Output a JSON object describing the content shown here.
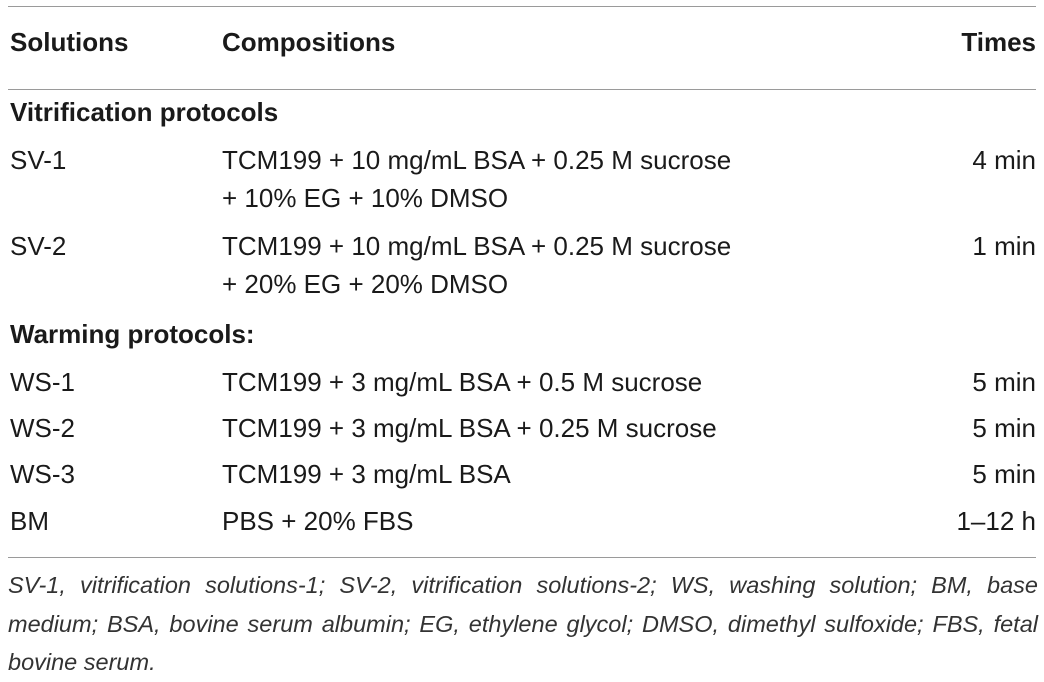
{
  "header": {
    "solutions": "Solutions",
    "compositions": "Compositions",
    "times": "Times"
  },
  "sections": {
    "vitrification": "Vitrification protocols",
    "warming": "Warming protocols:"
  },
  "rows": [
    {
      "solution": "SV-1",
      "composition_line1": "TCM199 + 10 mg/mL BSA + 0.25 M sucrose",
      "composition_line2": "+ 10% EG + 10% DMSO",
      "time": "4 min"
    },
    {
      "solution": "SV-2",
      "composition_line1": "TCM199 + 10 mg/mL BSA + 0.25 M sucrose",
      "composition_line2": "+ 20% EG + 20% DMSO",
      "time": "1 min"
    },
    {
      "solution": "WS-1",
      "composition_line1": "TCM199 + 3 mg/mL BSA + 0.5 M sucrose",
      "time": "5 min"
    },
    {
      "solution": "WS-2",
      "composition_line1": "TCM199 + 3 mg/mL BSA + 0.25 M sucrose",
      "time": "5 min"
    },
    {
      "solution": "WS-3",
      "composition_line1": "TCM199 + 3 mg/mL BSA",
      "time": "5 min"
    },
    {
      "solution": "BM",
      "composition_line1": "PBS + 20% FBS",
      "time": "1–12 h"
    }
  ],
  "footnote": "SV-1, vitrification solutions-1; SV-2, vitrification solutions-2; WS, washing solution; BM, base medium; BSA, bovine serum albumin; EG, ethylene glycol; DMSO, dimethyl sulfoxide; FBS, fetal bovine serum."
}
